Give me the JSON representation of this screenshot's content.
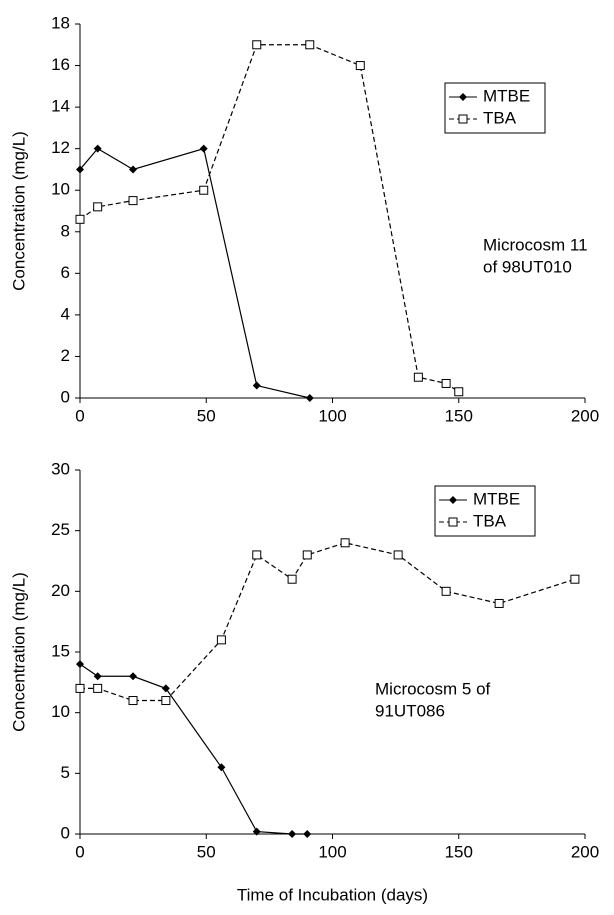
{
  "chart_data": [
    {
      "type": "line",
      "ylabel": "Concentration (mg/L)",
      "xlim": [
        0,
        200
      ],
      "xticks": [
        0,
        50,
        100,
        150,
        200
      ],
      "ylim": [
        0,
        18
      ],
      "yticks": [
        0,
        2,
        4,
        6,
        8,
        10,
        12,
        14,
        16,
        18
      ],
      "legend": "upper right",
      "annotation": [
        "Microcosm 11",
        "of 98UT010"
      ],
      "series": [
        {
          "name": "MTBE",
          "color": "#000000",
          "line": "solid",
          "marker": "diamond",
          "x": [
            0,
            7,
            21,
            49,
            70,
            91
          ],
          "values": [
            11,
            12,
            11,
            12,
            0.6,
            0
          ]
        },
        {
          "name": "TBA",
          "color": "#000000",
          "line": "dashed",
          "marker": "square",
          "x": [
            0,
            7,
            21,
            49,
            70,
            91,
            111,
            134,
            145,
            150
          ],
          "values": [
            8.6,
            9.2,
            9.5,
            10,
            17,
            17,
            16,
            1.0,
            0.7,
            0.3
          ]
        }
      ]
    },
    {
      "type": "line",
      "ylabel": "Concentration (mg/L)",
      "xlabel": "Time of Incubation (days)",
      "xlim": [
        0,
        200
      ],
      "xticks": [
        0,
        50,
        100,
        150,
        200
      ],
      "ylim": [
        0,
        30
      ],
      "yticks": [
        0,
        5,
        10,
        15,
        20,
        25,
        30
      ],
      "legend": "upper right",
      "annotation": [
        "Microcosm 5 of",
        "91UT086"
      ],
      "series": [
        {
          "name": "MTBE",
          "color": "#000000",
          "line": "solid",
          "marker": "diamond",
          "x": [
            0,
            7,
            21,
            34,
            56,
            70,
            84,
            90
          ],
          "values": [
            14,
            13,
            13,
            12,
            5.5,
            0.2,
            0,
            0
          ]
        },
        {
          "name": "TBA",
          "color": "#000000",
          "line": "dashed",
          "marker": "square",
          "x": [
            0,
            7,
            21,
            34,
            56,
            70,
            84,
            90,
            105,
            126,
            145,
            166,
            196
          ],
          "values": [
            12,
            12,
            11,
            11,
            16,
            23,
            21,
            23,
            24,
            23,
            20,
            19,
            21
          ]
        }
      ]
    }
  ]
}
